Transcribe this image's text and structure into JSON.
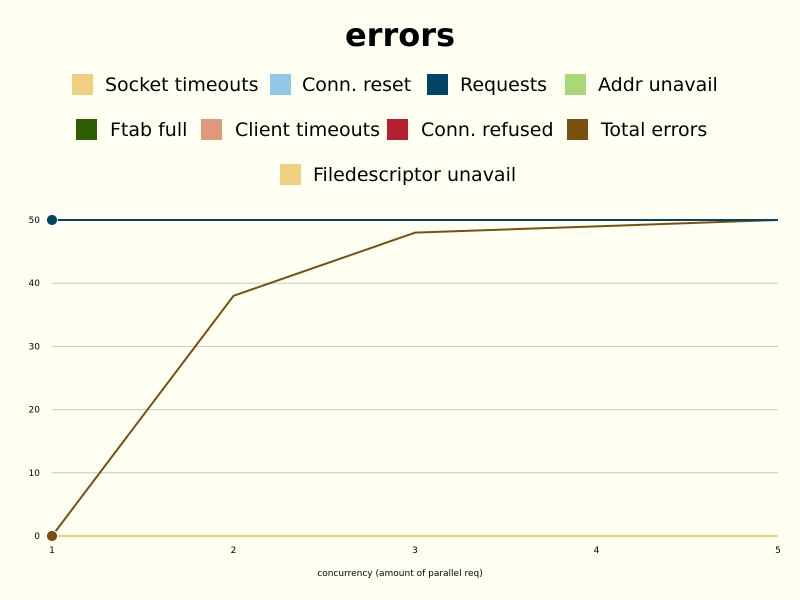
{
  "chart_data": {
    "type": "line",
    "title": "errors",
    "xlabel": "concurrency (amount of parallel req)",
    "ylabel": "",
    "x": [
      1,
      2,
      3,
      4,
      5
    ],
    "xlim": [
      1,
      5
    ],
    "ylim": [
      0,
      50
    ],
    "yticks": [
      0,
      10,
      20,
      30,
      40,
      50
    ],
    "grid": true,
    "legend_position": "top",
    "series": [
      {
        "name": "Socket timeouts",
        "color": "#f0d080",
        "values": [
          0,
          0,
          0,
          0,
          0
        ]
      },
      {
        "name": "Conn. reset",
        "color": "#90c8e8",
        "values": [
          0,
          0,
          0,
          0,
          0
        ]
      },
      {
        "name": "Requests",
        "color": "#004466",
        "values": [
          50,
          50,
          50,
          50,
          50
        ]
      },
      {
        "name": "Addr unavail",
        "color": "#a8d878",
        "values": [
          0,
          0,
          0,
          0,
          0
        ]
      },
      {
        "name": "Ftab full",
        "color": "#2e5c00",
        "values": [
          0,
          0,
          0,
          0,
          0
        ]
      },
      {
        "name": "Client timeouts",
        "color": "#e09a7a",
        "values": [
          0,
          0,
          0,
          0,
          0
        ]
      },
      {
        "name": "Conn. refused",
        "color": "#b52030",
        "values": [
          0,
          0,
          0,
          0,
          0
        ]
      },
      {
        "name": "Total errors",
        "color": "#7a5010",
        "values": [
          0,
          38,
          48,
          49,
          50
        ]
      },
      {
        "name": "Filedescriptor unavail",
        "color": "#f0d080",
        "values": [
          0,
          0,
          0,
          0,
          0
        ]
      }
    ]
  }
}
